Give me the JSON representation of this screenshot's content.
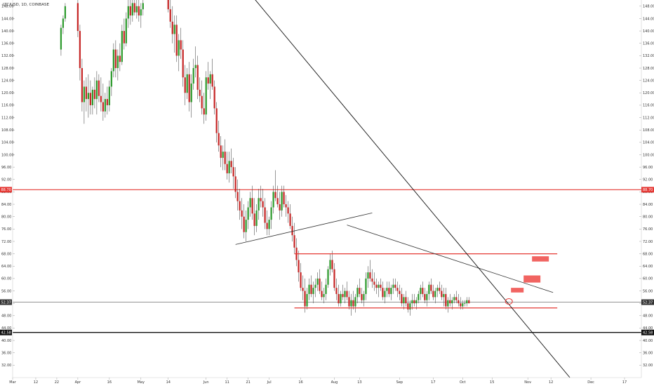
{
  "chart_data": {
    "type": "candlestick",
    "title": "LTC/USD, 1D, COINBASE",
    "y_axis": {
      "side": "both",
      "range": [
        28,
        150
      ],
      "tick_labels": [
        "148.00",
        "144.00",
        "140.00",
        "136.00",
        "132.00",
        "128.00",
        "124.00",
        "120.00",
        "116.00",
        "112.00",
        "108.00",
        "104.00",
        "100.00",
        "96.00",
        "92.00",
        "88.00",
        "84.00",
        "80.00",
        "76.00",
        "72.00",
        "68.00",
        "64.00",
        "60.00",
        "56.00",
        "52.00",
        "48.00",
        "44.00",
        "40.00",
        "36.00",
        "32.00"
      ]
    },
    "x_axis": {
      "range_days": [
        0,
        299
      ],
      "tick_labels": [
        {
          "day": 0,
          "label": "Mar"
        },
        {
          "day": 11,
          "label": "12"
        },
        {
          "day": 21,
          "label": "22"
        },
        {
          "day": 31,
          "label": "Apr"
        },
        {
          "day": 46,
          "label": "16"
        },
        {
          "day": 61,
          "label": "May"
        },
        {
          "day": 74,
          "label": "14"
        },
        {
          "day": 92,
          "label": "Jun"
        },
        {
          "day": 102,
          "label": "11"
        },
        {
          "day": 112,
          "label": "21"
        },
        {
          "day": 122,
          "label": "Jul"
        },
        {
          "day": 137,
          "label": "16"
        },
        {
          "day": 153,
          "label": "Aug"
        },
        {
          "day": 165,
          "label": "13"
        },
        {
          "day": 184,
          "label": "Sep"
        },
        {
          "day": 200,
          "label": "17"
        },
        {
          "day": 214,
          "label": "Oct"
        },
        {
          "day": 228,
          "label": "15"
        },
        {
          "day": 245,
          "label": "Nov"
        },
        {
          "day": 256,
          "label": "12"
        },
        {
          "day": 275,
          "label": "Dec"
        },
        {
          "day": 291,
          "label": "17"
        }
      ]
    },
    "price_badges": [
      {
        "value": 88.7,
        "label": "88.70",
        "color": "#e53935",
        "text_color": "#ffffff"
      },
      {
        "value": 52.37,
        "label": "52.37",
        "color": "#333333",
        "text_color": "#ffffff"
      },
      {
        "value": 42.58,
        "label": "42.58",
        "color": "#111111",
        "text_color": "#ffffff"
      }
    ],
    "horizontal_lines": [
      {
        "value": 88.7,
        "color": "#e53935",
        "width": 1.2
      },
      {
        "value": 52.37,
        "color": "#555555",
        "width": 0.6
      },
      {
        "value": 42.58,
        "color": "#111111",
        "width": 1.4
      }
    ],
    "segments": [
      {
        "from": [
          134,
          68.0
        ],
        "to": [
          259,
          68.0
        ],
        "color": "#e53935",
        "width": 1.3
      },
      {
        "from": [
          134,
          50.5
        ],
        "to": [
          259,
          50.5
        ],
        "color": "#e53935",
        "width": 1.3
      },
      {
        "from": [
          106,
          71.0
        ],
        "to": [
          171,
          81.2
        ],
        "color": "#333333",
        "width": 0.8
      },
      {
        "from": [
          159,
          77.3
        ],
        "to": [
          257,
          55.5
        ],
        "color": "#333333",
        "width": 0.8
      },
      {
        "from": [
          113,
          152
        ],
        "to": [
          265,
          28
        ],
        "color": "#111111",
        "width": 0.9
      }
    ],
    "target_boxes": [
      {
        "day_from": 237,
        "day_to": 243,
        "low": 55.5,
        "high": 57.0,
        "color": "#ef5350"
      },
      {
        "day_from": 243,
        "day_to": 251,
        "low": 58.7,
        "high": 61.0,
        "color": "#ef5350"
      },
      {
        "day_from": 247,
        "day_to": 255,
        "low": 65.5,
        "high": 67.2,
        "color": "#ef5350"
      }
    ],
    "marker_circle": {
      "day": 236,
      "value": 52.6,
      "color": "#e53935"
    },
    "colors": {
      "up": "#2e9b2e",
      "down": "#c62828",
      "wick": "#555555"
    },
    "candles": [
      [
        23,
        134,
        142,
        132,
        141
      ],
      [
        24,
        141,
        145,
        139,
        144
      ],
      [
        25,
        144,
        149,
        143,
        148
      ],
      [
        31,
        149,
        150,
        138,
        140
      ],
      [
        32,
        140,
        142,
        124,
        128
      ],
      [
        33,
        128,
        131,
        114,
        117
      ],
      [
        34,
        117,
        124,
        110,
        122
      ],
      [
        35,
        122,
        125,
        114,
        118
      ],
      [
        36,
        118,
        126,
        112,
        120
      ],
      [
        37,
        120,
        124,
        113,
        116
      ],
      [
        38,
        116,
        122,
        113,
        121
      ],
      [
        39,
        121,
        125,
        115,
        118
      ],
      [
        40,
        118,
        127,
        113,
        124
      ],
      [
        41,
        124,
        126,
        117,
        119
      ],
      [
        42,
        119,
        125,
        114,
        117
      ],
      [
        43,
        117,
        123,
        111,
        114
      ],
      [
        44,
        114,
        120,
        112,
        118
      ],
      [
        45,
        118,
        122,
        113,
        116
      ],
      [
        46,
        116,
        124,
        114,
        122
      ],
      [
        47,
        122,
        128,
        119,
        127
      ],
      [
        48,
        127,
        136,
        125,
        134
      ],
      [
        49,
        134,
        137,
        125,
        128
      ],
      [
        50,
        128,
        134,
        124,
        132
      ],
      [
        51,
        132,
        136,
        127,
        130
      ],
      [
        52,
        130,
        142,
        129,
        140
      ],
      [
        53,
        140,
        144,
        134,
        136
      ],
      [
        54,
        136,
        146,
        135,
        144
      ],
      [
        55,
        144,
        150,
        141,
        148
      ],
      [
        56,
        148,
        150,
        142,
        145
      ],
      [
        57,
        145,
        150,
        143,
        149
      ],
      [
        58,
        149,
        150,
        145,
        146
      ],
      [
        59,
        146,
        150,
        144,
        148
      ],
      [
        60,
        148,
        150,
        143,
        145
      ],
      [
        61,
        145,
        149,
        141,
        147
      ],
      [
        62,
        147,
        150,
        145,
        149
      ],
      [
        74,
        150,
        150,
        146,
        147
      ],
      [
        75,
        147,
        150,
        141,
        143
      ],
      [
        76,
        143,
        148,
        136,
        139
      ],
      [
        77,
        139,
        145,
        133,
        142
      ],
      [
        78,
        142,
        145,
        130,
        132
      ],
      [
        79,
        132,
        139,
        127,
        137
      ],
      [
        80,
        137,
        141,
        131,
        134
      ],
      [
        81,
        134,
        137,
        122,
        125
      ],
      [
        82,
        125,
        129,
        116,
        120
      ],
      [
        83,
        120,
        128,
        118,
        126
      ],
      [
        84,
        126,
        130,
        114,
        117
      ],
      [
        85,
        117,
        126,
        112,
        123
      ],
      [
        86,
        123,
        131,
        121,
        128
      ],
      [
        87,
        128,
        135,
        125,
        129
      ],
      [
        88,
        129,
        132,
        118,
        121
      ],
      [
        89,
        121,
        125,
        117,
        119
      ],
      [
        90,
        119,
        124,
        113,
        115
      ],
      [
        91,
        115,
        120,
        110,
        113
      ],
      [
        92,
        113,
        127,
        111,
        125
      ],
      [
        93,
        125,
        130,
        121,
        123
      ],
      [
        94,
        123,
        127,
        118,
        126
      ],
      [
        95,
        126,
        131,
        121,
        122
      ],
      [
        96,
        122,
        124,
        113,
        115
      ],
      [
        97,
        115,
        117,
        104,
        107
      ],
      [
        98,
        107,
        111,
        101,
        103
      ],
      [
        99,
        103,
        106,
        96,
        99
      ],
      [
        100,
        99,
        103,
        95,
        101
      ],
      [
        101,
        101,
        105,
        95,
        97
      ],
      [
        102,
        97,
        101,
        92,
        94
      ],
      [
        103,
        94,
        101,
        91,
        98
      ],
      [
        104,
        98,
        102,
        94,
        96
      ],
      [
        105,
        96,
        99,
        89,
        93
      ],
      [
        106,
        93,
        96,
        86,
        88
      ],
      [
        107,
        88,
        92,
        82,
        85
      ],
      [
        108,
        85,
        89,
        79,
        82
      ],
      [
        109,
        82,
        86,
        76,
        80
      ],
      [
        110,
        80,
        84,
        73,
        75
      ],
      [
        111,
        75,
        82,
        72,
        79
      ],
      [
        112,
        79,
        85,
        76,
        83
      ],
      [
        113,
        83,
        88,
        80,
        86
      ],
      [
        114,
        86,
        90,
        79,
        81
      ],
      [
        115,
        81,
        86,
        74,
        77
      ],
      [
        116,
        77,
        84,
        75,
        82
      ],
      [
        117,
        82,
        89,
        79,
        86
      ],
      [
        118,
        86,
        90,
        83,
        85
      ],
      [
        119,
        85,
        89,
        80,
        83
      ],
      [
        120,
        83,
        86,
        76,
        78
      ],
      [
        121,
        78,
        82,
        74,
        76
      ],
      [
        122,
        76,
        80,
        74,
        79
      ],
      [
        123,
        79,
        85,
        76,
        83
      ],
      [
        124,
        83,
        90,
        81,
        88
      ],
      [
        125,
        88,
        95,
        85,
        86
      ],
      [
        126,
        86,
        90,
        83,
        84
      ],
      [
        127,
        84,
        88,
        79,
        82
      ],
      [
        128,
        82,
        90,
        80,
        88
      ],
      [
        129,
        88,
        90,
        83,
        84
      ],
      [
        130,
        84,
        87,
        80,
        83
      ],
      [
        131,
        83,
        85,
        78,
        81
      ],
      [
        132,
        81,
        84,
        76,
        77
      ],
      [
        133,
        77,
        80,
        72,
        74
      ],
      [
        134,
        74,
        78,
        68,
        70
      ],
      [
        135,
        70,
        73,
        64,
        66
      ],
      [
        136,
        66,
        69,
        59,
        62
      ],
      [
        137,
        62,
        65,
        56,
        57
      ],
      [
        138,
        57,
        61,
        53,
        56
      ],
      [
        139,
        56,
        60,
        49,
        51
      ],
      [
        140,
        51,
        57,
        50,
        55
      ],
      [
        141,
        55,
        60,
        53,
        58
      ],
      [
        142,
        58,
        61,
        54,
        55
      ],
      [
        143,
        55,
        59,
        52,
        57
      ],
      [
        144,
        57,
        60,
        54,
        58
      ],
      [
        145,
        58,
        62,
        56,
        60
      ],
      [
        146,
        60,
        63,
        55,
        56
      ],
      [
        147,
        56,
        59,
        53,
        54
      ],
      [
        148,
        54,
        57,
        52,
        55
      ],
      [
        149,
        55,
        60,
        53,
        58
      ],
      [
        150,
        58,
        64,
        57,
        63
      ],
      [
        151,
        63,
        68,
        61,
        66
      ],
      [
        152,
        66,
        69,
        62,
        63
      ],
      [
        153,
        63,
        65,
        56,
        57
      ],
      [
        154,
        57,
        60,
        53,
        55
      ],
      [
        155,
        55,
        58,
        51,
        52
      ],
      [
        156,
        52,
        56,
        51,
        55
      ],
      [
        157,
        55,
        58,
        53,
        54
      ],
      [
        158,
        54,
        57,
        52,
        56
      ],
      [
        159,
        56,
        59,
        53,
        54
      ],
      [
        160,
        54,
        56,
        50,
        51
      ],
      [
        161,
        51,
        55,
        48,
        53
      ],
      [
        162,
        53,
        56,
        50,
        51
      ],
      [
        163,
        51,
        55,
        49,
        54
      ],
      [
        164,
        54,
        58,
        52,
        57
      ],
      [
        165,
        57,
        60,
        54,
        55
      ],
      [
        166,
        55,
        57,
        52,
        53
      ],
      [
        167,
        53,
        56,
        51,
        55
      ],
      [
        168,
        55,
        62,
        53,
        60
      ],
      [
        169,
        60,
        64,
        57,
        62
      ],
      [
        170,
        62,
        66,
        59,
        60
      ],
      [
        171,
        60,
        63,
        57,
        59
      ],
      [
        172,
        59,
        62,
        56,
        58
      ],
      [
        173,
        58,
        60,
        55,
        57
      ],
      [
        174,
        57,
        59,
        54,
        58
      ],
      [
        175,
        58,
        60,
        56,
        57
      ],
      [
        176,
        57,
        59,
        53,
        54
      ],
      [
        177,
        54,
        57,
        52,
        56
      ],
      [
        178,
        56,
        59,
        54,
        57
      ],
      [
        179,
        57,
        59,
        54,
        55
      ],
      [
        180,
        55,
        58,
        53,
        57
      ],
      [
        181,
        57,
        60,
        55,
        58
      ],
      [
        182,
        58,
        60,
        56,
        57
      ],
      [
        183,
        57,
        59,
        54,
        56
      ],
      [
        184,
        56,
        58,
        53,
        55
      ],
      [
        185,
        55,
        57,
        51,
        52
      ],
      [
        186,
        52,
        55,
        50,
        54
      ],
      [
        187,
        54,
        56,
        51,
        52
      ],
      [
        188,
        52,
        54,
        49,
        50
      ],
      [
        189,
        50,
        53,
        48,
        52
      ],
      [
        190,
        52,
        55,
        50,
        53
      ],
      [
        191,
        53,
        55,
        51,
        52
      ],
      [
        192,
        52,
        54,
        50,
        53
      ],
      [
        193,
        53,
        56,
        52,
        55
      ],
      [
        194,
        55,
        58,
        53,
        57
      ],
      [
        195,
        57,
        59,
        54,
        55
      ],
      [
        196,
        55,
        57,
        52,
        53
      ],
      [
        197,
        53,
        56,
        51,
        55
      ],
      [
        198,
        55,
        59,
        53,
        58
      ],
      [
        199,
        58,
        60,
        55,
        56
      ],
      [
        200,
        56,
        58,
        53,
        54
      ],
      [
        201,
        54,
        57,
        52,
        56
      ],
      [
        202,
        56,
        58,
        54,
        57
      ],
      [
        203,
        57,
        59,
        55,
        56
      ],
      [
        204,
        56,
        58,
        53,
        54
      ],
      [
        205,
        54,
        57,
        51,
        55
      ],
      [
        206,
        55,
        57,
        50,
        51
      ],
      [
        207,
        51,
        54,
        49,
        53
      ],
      [
        208,
        53,
        55,
        51,
        52
      ],
      [
        209,
        52,
        54,
        50,
        53
      ],
      [
        210,
        53,
        55,
        52,
        54
      ],
      [
        211,
        54,
        56,
        52,
        53
      ],
      [
        212,
        53,
        55,
        51,
        52
      ],
      [
        213,
        52,
        54,
        50,
        51
      ],
      [
        214,
        51,
        53,
        50,
        52
      ],
      [
        215,
        52,
        53,
        51,
        52
      ],
      [
        216,
        52,
        54,
        51,
        53
      ],
      [
        217,
        53,
        54,
        52,
        52
      ]
    ]
  }
}
